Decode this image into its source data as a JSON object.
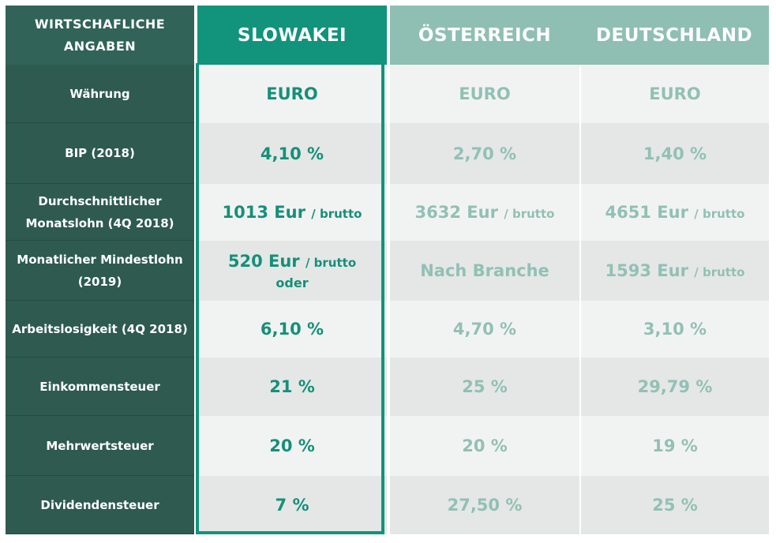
{
  "header": {
    "label": "WIRTSCHAFLICHE ANGABEN",
    "countries": [
      "SLOWAKEI",
      "ÖSTERREICH",
      "DEUTSCHLAND"
    ]
  },
  "rows": [
    {
      "label": "Währung",
      "sk": "EURO",
      "at": "EURO",
      "de": "EURO"
    },
    {
      "label": "BIP (2018)",
      "sk": "4,10 %",
      "at": "2,70 %",
      "de": "1,40 %"
    },
    {
      "label": "Durchschnittlicher Monatslohn (4Q 2018)",
      "sk": "1013 Eur",
      "sk_suffix": "/ brutto",
      "at": "3632 Eur",
      "at_suffix": "/ brutto",
      "de": "4651 Eur",
      "de_suffix": "/ brutto"
    },
    {
      "label": "Monatlicher Mindestlohn (2019)",
      "sk": "520 Eur",
      "sk_suffix": "/ brutto",
      "sk_sub": "oder",
      "at": "Nach Branche",
      "de": "1593 Eur",
      "de_suffix": "/ brutto"
    },
    {
      "label": "Arbeitslosigkeit (4Q 2018)",
      "sk": "6,10 %",
      "at": "4,70 %",
      "de": "3,10 %"
    },
    {
      "label": "Einkommensteuer",
      "sk": "21 %",
      "at": "25 %",
      "de": "29,79 %"
    },
    {
      "label": "Mehrwertsteuer",
      "sk": "20 %",
      "at": "20 %",
      "de": "19 %"
    },
    {
      "label": "Dividendensteuer",
      "sk": "7 %",
      "at": "27,50 %",
      "de": "25 %"
    }
  ],
  "colors": {
    "label_bg": "#2e5a50",
    "highlight": "#12937b",
    "muted": "#8ebfb2"
  }
}
